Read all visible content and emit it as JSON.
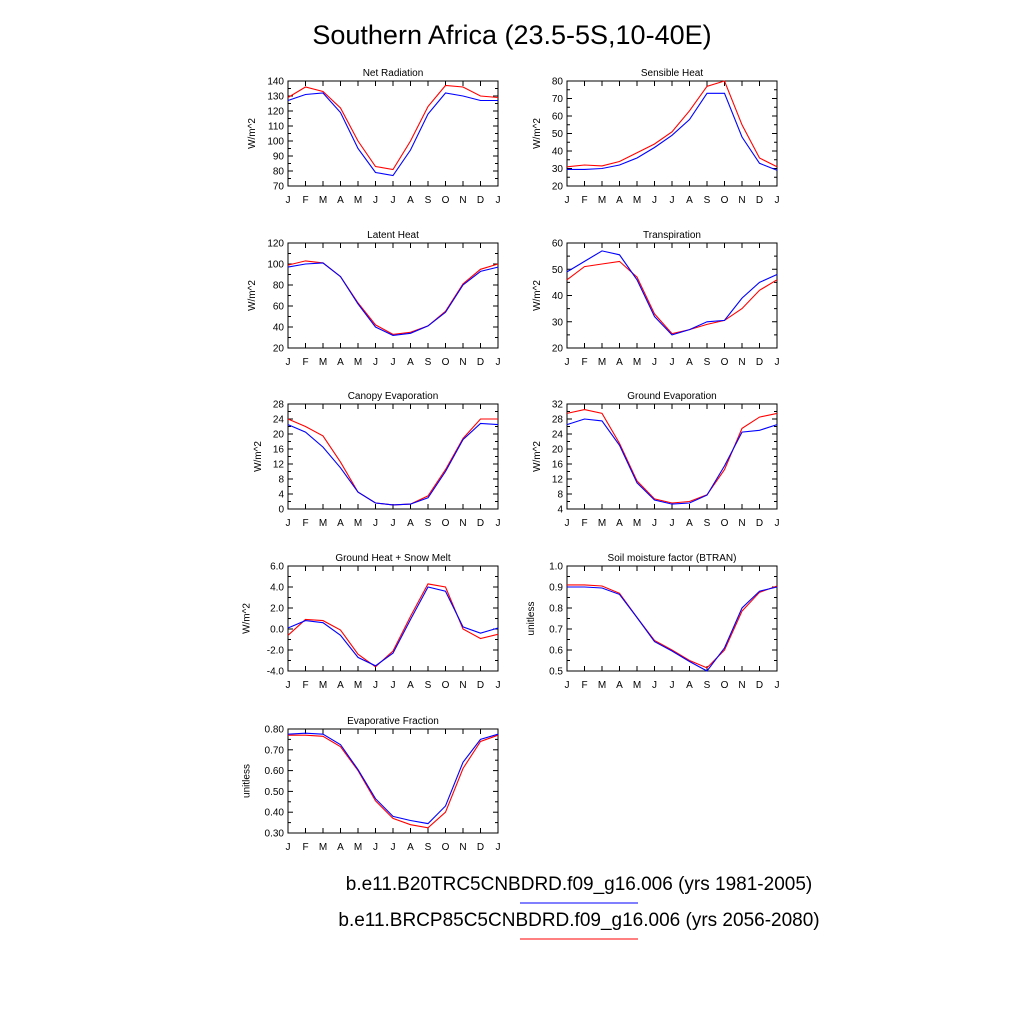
{
  "title": "Southern Africa (23.5-5S,10-40E)",
  "months": [
    "J",
    "F",
    "M",
    "A",
    "M",
    "J",
    "J",
    "A",
    "S",
    "O",
    "N",
    "D",
    "J"
  ],
  "legend": [
    {
      "label": "b.e11.B20TRC5CNBDRD.f09_g16.006 (yrs 1981-2005)",
      "color": "#0000ff"
    },
    {
      "label": "b.e11.BRCP85C5CNBDRD.f09_g16.006 (yrs 2056-2080)",
      "color": "#ff0000"
    }
  ],
  "chart_data": [
    {
      "type": "line",
      "title": "Net Radiation",
      "ylabel": "W/m^2",
      "ylim": [
        70,
        140
      ],
      "yticks": [
        "70",
        "80",
        "90",
        "100",
        "110",
        "120",
        "130",
        "140"
      ],
      "series": [
        {
          "color": "#ff0000",
          "values": [
            129,
            136,
            133,
            122,
            100,
            83,
            81,
            100,
            123,
            137,
            136,
            130,
            129
          ]
        },
        {
          "color": "#0000ff",
          "values": [
            127,
            131,
            132,
            119,
            95,
            79,
            77,
            94,
            118,
            132,
            130,
            127,
            127
          ]
        }
      ]
    },
    {
      "type": "line",
      "title": "Sensible Heat",
      "ylabel": "W/m^2",
      "ylim": [
        20,
        80
      ],
      "yticks": [
        "20",
        "30",
        "40",
        "50",
        "60",
        "70",
        "80"
      ],
      "series": [
        {
          "color": "#ff0000",
          "values": [
            31,
            32,
            31.5,
            34,
            39,
            44,
            51,
            63,
            77,
            80,
            55,
            36,
            31
          ]
        },
        {
          "color": "#0000ff",
          "values": [
            29.5,
            29.5,
            30,
            32,
            36,
            42,
            49,
            58,
            73,
            73,
            48,
            33,
            29
          ]
        }
      ]
    },
    {
      "type": "line",
      "title": "Latent Heat",
      "ylabel": "W/m^2",
      "ylim": [
        20,
        120
      ],
      "yticks": [
        "20",
        "40",
        "60",
        "80",
        "100",
        "120"
      ],
      "series": [
        {
          "color": "#ff0000",
          "values": [
            99,
            103,
            101,
            88,
            63,
            42,
            33,
            35,
            41,
            55,
            81,
            95,
            100
          ]
        },
        {
          "color": "#0000ff",
          "values": [
            97,
            100,
            101,
            88,
            62,
            40,
            32,
            34,
            41,
            54,
            80,
            93,
            97
          ]
        }
      ]
    },
    {
      "type": "line",
      "title": "Transpiration",
      "ylabel": "W/m^2",
      "ylim": [
        20,
        60
      ],
      "yticks": [
        "20",
        "30",
        "40",
        "50",
        "60"
      ],
      "series": [
        {
          "color": "#ff0000",
          "values": [
            46,
            51,
            52,
            53,
            47,
            33,
            25.5,
            27,
            29,
            30.5,
            35,
            42,
            46
          ]
        },
        {
          "color": "#0000ff",
          "values": [
            49,
            53,
            57,
            55.5,
            46,
            32,
            25,
            27,
            30,
            30.5,
            39,
            45,
            48
          ]
        }
      ]
    },
    {
      "type": "line",
      "title": "Canopy Evaporation",
      "ylabel": "W/m^2",
      "ylim": [
        0,
        28
      ],
      "yticks": [
        "0",
        "4",
        "8",
        "12",
        "16",
        "20",
        "24",
        "28"
      ],
      "series": [
        {
          "color": "#ff0000",
          "values": [
            24,
            22,
            19.5,
            12.5,
            4.5,
            1.6,
            1.1,
            1.3,
            3.5,
            10.5,
            18.8,
            24,
            24
          ]
        },
        {
          "color": "#0000ff",
          "values": [
            22.5,
            20.5,
            16.5,
            11,
            4.5,
            1.6,
            1.1,
            1.3,
            3,
            10,
            18.5,
            22.8,
            22.5
          ]
        }
      ]
    },
    {
      "type": "line",
      "title": "Ground Evaporation",
      "ylabel": "W/m^2",
      "ylim": [
        4,
        32
      ],
      "yticks": [
        "4",
        "8",
        "12",
        "16",
        "20",
        "24",
        "28",
        "32"
      ],
      "series": [
        {
          "color": "#ff0000",
          "values": [
            29.5,
            30.5,
            29.5,
            21.5,
            11.5,
            6.7,
            5.6,
            6,
            7.8,
            14.5,
            25.5,
            28.5,
            29.5
          ]
        },
        {
          "color": "#0000ff",
          "values": [
            26.5,
            28,
            27.5,
            21,
            11,
            6.4,
            5.3,
            5.6,
            7.7,
            15.5,
            24.5,
            25,
            26.5
          ]
        }
      ]
    },
    {
      "type": "line",
      "title": "Ground Heat + Snow Melt",
      "ylabel": "W/m^2",
      "ylim": [
        -4,
        6
      ],
      "yticks": [
        "-4.0",
        "-2.0",
        "0.0",
        "2.0",
        "4.0",
        "6.0"
      ],
      "series": [
        {
          "color": "#ff0000",
          "values": [
            -0.6,
            0.9,
            0.8,
            -0.1,
            -2.4,
            -3.6,
            -2.1,
            1.2,
            4.3,
            4.0,
            0.0,
            -0.9,
            -0.5
          ]
        },
        {
          "color": "#0000ff",
          "values": [
            0.1,
            0.8,
            0.6,
            -0.6,
            -2.7,
            -3.5,
            -2.3,
            0.9,
            4.0,
            3.6,
            0.2,
            -0.4,
            0.1
          ]
        }
      ]
    },
    {
      "type": "line",
      "title": "Soil moisture factor (BTRAN)",
      "ylabel": "unitless",
      "ylim": [
        0.5,
        1.0
      ],
      "yticks": [
        "0.5",
        "0.6",
        "0.7",
        "0.8",
        "0.9",
        "1.0"
      ],
      "series": [
        {
          "color": "#ff0000",
          "values": [
            0.91,
            0.91,
            0.905,
            0.87,
            0.755,
            0.645,
            0.6,
            0.55,
            0.515,
            0.6,
            0.785,
            0.875,
            0.905
          ]
        },
        {
          "color": "#0000ff",
          "values": [
            0.9,
            0.9,
            0.895,
            0.865,
            0.755,
            0.64,
            0.595,
            0.545,
            0.5,
            0.61,
            0.8,
            0.88,
            0.9
          ]
        }
      ]
    },
    {
      "type": "line",
      "title": "Evaporative Fraction",
      "ylabel": "unitless",
      "ylim": [
        0.3,
        0.8
      ],
      "yticks": [
        "0.30",
        "0.40",
        "0.50",
        "0.60",
        "0.70",
        "0.80"
      ],
      "series": [
        {
          "color": "#ff0000",
          "values": [
            0.77,
            0.77,
            0.765,
            0.715,
            0.6,
            0.455,
            0.37,
            0.34,
            0.325,
            0.4,
            0.61,
            0.74,
            0.77
          ]
        },
        {
          "color": "#0000ff",
          "values": [
            0.775,
            0.78,
            0.775,
            0.725,
            0.605,
            0.465,
            0.38,
            0.36,
            0.345,
            0.43,
            0.64,
            0.75,
            0.775
          ]
        }
      ]
    }
  ]
}
